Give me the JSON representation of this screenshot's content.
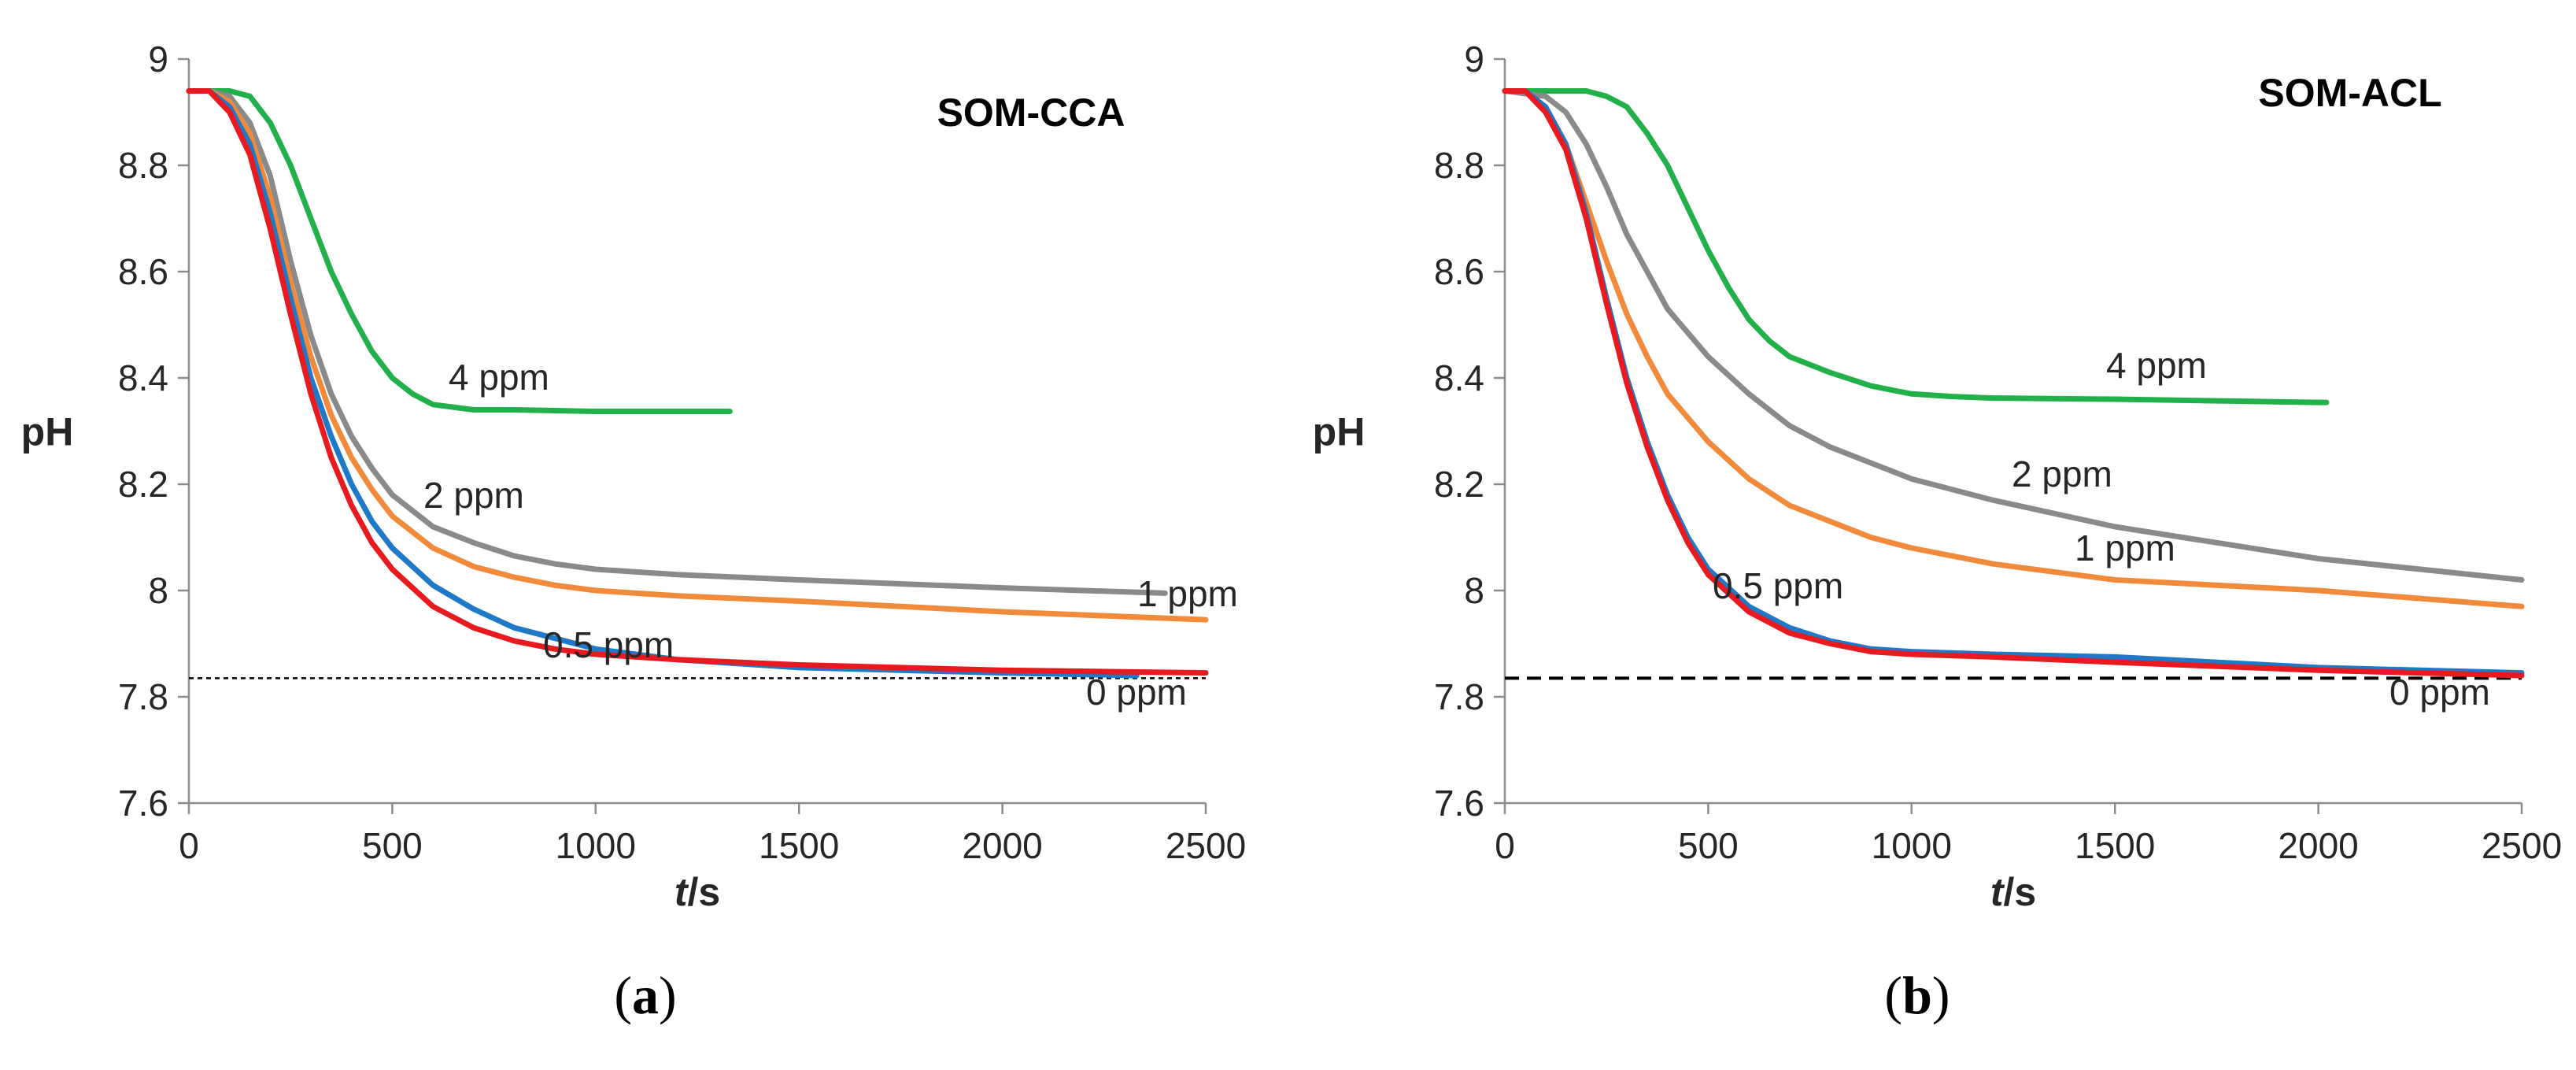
{
  "chart_data": [
    {
      "type": "line",
      "title": "SOM-CCA",
      "xlabel_italic": "t",
      "xlabel_rest": "/s",
      "ylabel": "pH",
      "xlim": [
        0,
        2500
      ],
      "ylim": [
        7.6,
        9
      ],
      "xticks": [
        "0",
        "500",
        "1000",
        "1500",
        "2000",
        "2500"
      ],
      "yticks": [
        "7.6",
        "7.8",
        "8",
        "8.2",
        "8.4",
        "8.6",
        "8.8",
        "9"
      ],
      "caption": "a",
      "reference_line": {
        "y": 7.835,
        "style": "dotted"
      },
      "series": [
        {
          "name": "4 ppm",
          "color": "#22b04b",
          "x": [
            0,
            100,
            150,
            200,
            250,
            300,
            350,
            400,
            450,
            500,
            550,
            600,
            650,
            700,
            800,
            1000,
            1200,
            1330
          ],
          "y": [
            8.94,
            8.94,
            8.93,
            8.88,
            8.8,
            8.7,
            8.6,
            8.52,
            8.45,
            8.4,
            8.37,
            8.35,
            8.345,
            8.34,
            8.34,
            8.337,
            8.337,
            8.337
          ]
        },
        {
          "name": "2 ppm",
          "color": "#8a8a8a",
          "x": [
            0,
            50,
            100,
            150,
            200,
            250,
            300,
            350,
            400,
            450,
            500,
            600,
            700,
            800,
            900,
            1000,
            1200,
            1500,
            2000,
            2400
          ],
          "y": [
            8.94,
            8.94,
            8.93,
            8.88,
            8.78,
            8.62,
            8.48,
            8.37,
            8.29,
            8.23,
            8.18,
            8.12,
            8.09,
            8.065,
            8.05,
            8.04,
            8.03,
            8.02,
            8.005,
            7.995
          ]
        },
        {
          "name": "1 ppm",
          "color": "#f28a3c",
          "x": [
            0,
            50,
            100,
            150,
            200,
            250,
            300,
            350,
            400,
            450,
            500,
            600,
            700,
            800,
            900,
            1000,
            1200,
            1500,
            2000,
            2500
          ],
          "y": [
            8.94,
            8.94,
            8.92,
            8.86,
            8.74,
            8.58,
            8.44,
            8.33,
            8.25,
            8.19,
            8.14,
            8.08,
            8.045,
            8.025,
            8.01,
            8.0,
            7.99,
            7.98,
            7.96,
            7.945
          ]
        },
        {
          "name": "0.5 ppm",
          "color": "#1f78c8",
          "x": [
            0,
            50,
            100,
            150,
            200,
            250,
            300,
            350,
            400,
            450,
            500,
            600,
            700,
            800,
            900,
            1000,
            1200,
            1500,
            2000,
            2330
          ],
          "y": [
            8.94,
            8.94,
            8.91,
            8.84,
            8.71,
            8.55,
            8.4,
            8.29,
            8.2,
            8.13,
            8.08,
            8.01,
            7.965,
            7.93,
            7.91,
            7.89,
            7.87,
            7.855,
            7.845,
            7.84
          ]
        },
        {
          "name": "0 ppm",
          "color": "#e8191f",
          "x": [
            0,
            50,
            100,
            150,
            200,
            250,
            300,
            350,
            400,
            450,
            500,
            600,
            700,
            800,
            900,
            1000,
            1200,
            1500,
            2000,
            2500
          ],
          "y": [
            8.94,
            8.94,
            8.9,
            8.82,
            8.68,
            8.52,
            8.37,
            8.25,
            8.16,
            8.09,
            8.04,
            7.97,
            7.93,
            7.905,
            7.89,
            7.88,
            7.87,
            7.86,
            7.85,
            7.845
          ]
        }
      ]
    },
    {
      "type": "line",
      "title": "SOM-ACL",
      "xlabel_italic": "t",
      "xlabel_rest": "/s",
      "ylabel": "pH",
      "xlim": [
        0,
        2500
      ],
      "ylim": [
        7.6,
        9
      ],
      "xticks": [
        "0",
        "500",
        "1000",
        "1500",
        "2000",
        "2500"
      ],
      "yticks": [
        "7.6",
        "7.8",
        "8",
        "8.2",
        "8.4",
        "8.6",
        "8.8",
        "9"
      ],
      "caption": "b",
      "reference_line": {
        "y": 7.835,
        "style": "dashed"
      },
      "series": [
        {
          "name": "4 ppm",
          "color": "#22b04b",
          "x": [
            0,
            200,
            250,
            300,
            350,
            400,
            450,
            500,
            550,
            600,
            650,
            700,
            800,
            900,
            1000,
            1100,
            1200,
            1500,
            2000,
            2020
          ],
          "y": [
            8.94,
            8.94,
            8.93,
            8.91,
            8.86,
            8.8,
            8.72,
            8.64,
            8.57,
            8.51,
            8.47,
            8.44,
            8.41,
            8.385,
            8.37,
            8.365,
            8.362,
            8.36,
            8.354,
            8.354
          ]
        },
        {
          "name": "2 ppm",
          "color": "#8a8a8a",
          "x": [
            0,
            100,
            150,
            200,
            250,
            300,
            350,
            400,
            500,
            600,
            700,
            800,
            900,
            1000,
            1200,
            1500,
            2000,
            2500
          ],
          "y": [
            8.94,
            8.93,
            8.9,
            8.84,
            8.76,
            8.67,
            8.6,
            8.53,
            8.44,
            8.37,
            8.31,
            8.27,
            8.24,
            8.21,
            8.17,
            8.12,
            8.06,
            8.02
          ]
        },
        {
          "name": "1 ppm",
          "color": "#f28a3c",
          "x": [
            0,
            50,
            100,
            150,
            200,
            250,
            300,
            350,
            400,
            500,
            600,
            700,
            800,
            900,
            1000,
            1200,
            1500,
            2000,
            2500
          ],
          "y": [
            8.94,
            8.94,
            8.91,
            8.84,
            8.73,
            8.62,
            8.52,
            8.44,
            8.37,
            8.28,
            8.21,
            8.16,
            8.13,
            8.1,
            8.08,
            8.05,
            8.02,
            8.0,
            7.97
          ]
        },
        {
          "name": "0.5 ppm",
          "color": "#1f78c8",
          "x": [
            0,
            50,
            100,
            150,
            200,
            250,
            300,
            350,
            400,
            450,
            500,
            600,
            700,
            800,
            900,
            1000,
            1200,
            1500,
            2000,
            2500
          ],
          "y": [
            8.94,
            8.94,
            8.91,
            8.84,
            8.71,
            8.55,
            8.4,
            8.28,
            8.18,
            8.1,
            8.04,
            7.97,
            7.93,
            7.905,
            7.89,
            7.885,
            7.88,
            7.875,
            7.855,
            7.845
          ]
        },
        {
          "name": "0 ppm",
          "color": "#e8191f",
          "x": [
            0,
            50,
            100,
            150,
            200,
            250,
            300,
            350,
            400,
            450,
            500,
            600,
            700,
            800,
            900,
            1000,
            1200,
            1500,
            2000,
            2500
          ],
          "y": [
            8.94,
            8.94,
            8.9,
            8.83,
            8.7,
            8.54,
            8.39,
            8.27,
            8.17,
            8.09,
            8.03,
            7.96,
            7.92,
            7.9,
            7.885,
            7.88,
            7.875,
            7.865,
            7.85,
            7.84
          ]
        }
      ]
    }
  ]
}
